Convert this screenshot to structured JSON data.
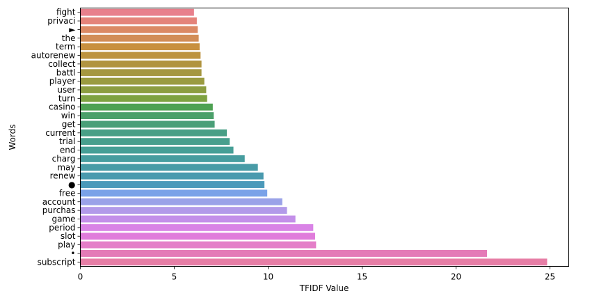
{
  "chart_data": {
    "type": "bar",
    "orientation": "horizontal",
    "title": "",
    "xlabel": "TFIDF Value",
    "ylabel": "Words",
    "xlim": [
      0,
      26
    ],
    "xticks": [
      0,
      5,
      10,
      15,
      20,
      25
    ],
    "xtick_labels": [
      "0",
      "5",
      "10",
      "15",
      "20",
      "25"
    ],
    "grid": false,
    "legend": "none",
    "categories": [
      "fight",
      "privaci",
      "►",
      "the",
      "term",
      "autorenew",
      "collect",
      "battl",
      "player",
      "user",
      "turn",
      "casino",
      "win",
      "get",
      "current",
      "trial",
      "end",
      "charg",
      "may",
      "renew",
      "●",
      "free",
      "account",
      "purchas",
      "game",
      "period",
      "slot",
      "play",
      "•",
      "subscript"
    ],
    "values": [
      6.05,
      6.2,
      6.25,
      6.3,
      6.35,
      6.4,
      6.45,
      6.45,
      6.6,
      6.7,
      6.75,
      7.05,
      7.1,
      7.15,
      7.8,
      7.95,
      8.15,
      8.75,
      9.45,
      9.75,
      9.8,
      9.95,
      10.75,
      11.0,
      11.45,
      12.4,
      12.5,
      12.55,
      21.65,
      24.85
    ],
    "colors": [
      "#e8808c",
      "#e4837a",
      "#db8964",
      "#d28d57",
      "#c8903f",
      "#bd933f",
      "#b19440",
      "#a59740",
      "#9a9b40",
      "#8c9d40",
      "#7ea240",
      "#4ea153",
      "#4ba06a",
      "#4a9f78",
      "#489f86",
      "#479f8d",
      "#469f96",
      "#479d9f",
      "#489ba6",
      "#4a9aae",
      "#4b99ba",
      "#7aa2e8",
      "#9aa2e8",
      "#b29ae9",
      "#c38fe9",
      "#d983e6",
      "#e07cdb",
      "#e47ec8",
      "#e47bb7",
      "#e77ea6"
    ]
  }
}
